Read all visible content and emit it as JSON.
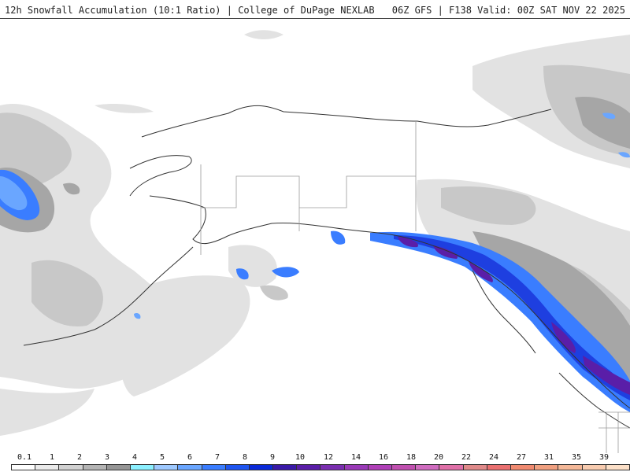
{
  "header": {
    "title_left": "12h Snowfall Accumulation (10:1 Ratio) | College of DuPage NEXLAB",
    "title_right": "06Z GFS | F138 Valid: 00Z SAT NOV 22 2025"
  },
  "map": {
    "region": "Alaska / Gulf of Alaska / Western Canada",
    "palette": {
      "light_gray": "#e0e0e0",
      "mid_gray": "#c4c4c4",
      "dark_gray": "#a8a8a8",
      "light_blue": "#9ec9ff",
      "blue": "#3a7dff",
      "deep_blue": "#1e3fe0",
      "purple": "#5a1ea8",
      "magenta": "#a0309a",
      "land_outline": "#333333",
      "border": "#9a9a9a"
    }
  },
  "legend": {
    "labels": [
      "0.1",
      "1",
      "2",
      "3",
      "4",
      "5",
      "6",
      "7",
      "8",
      "9",
      "10",
      "12",
      "14",
      "16",
      "18",
      "20",
      "22",
      "24",
      "27",
      "31",
      "35",
      "39"
    ],
    "colors": [
      "#ffffff",
      "#ebebeb",
      "#d2d2d2",
      "#b4b4b4",
      "#969696",
      "#8cf0ff",
      "#9ec9ff",
      "#6aa6ff",
      "#3a7dff",
      "#1e55f0",
      "#0a2ad8",
      "#3a1aa8",
      "#5a1ea8",
      "#7a2eb0",
      "#9a3ab8",
      "#b040b8",
      "#c050b0",
      "#d06cc0",
      "#e070a8",
      "#e08a8a",
      "#ea7070",
      "#f08a70",
      "#f0a080",
      "#f4b898",
      "#f8ccb0",
      "#fce0c8"
    ]
  }
}
